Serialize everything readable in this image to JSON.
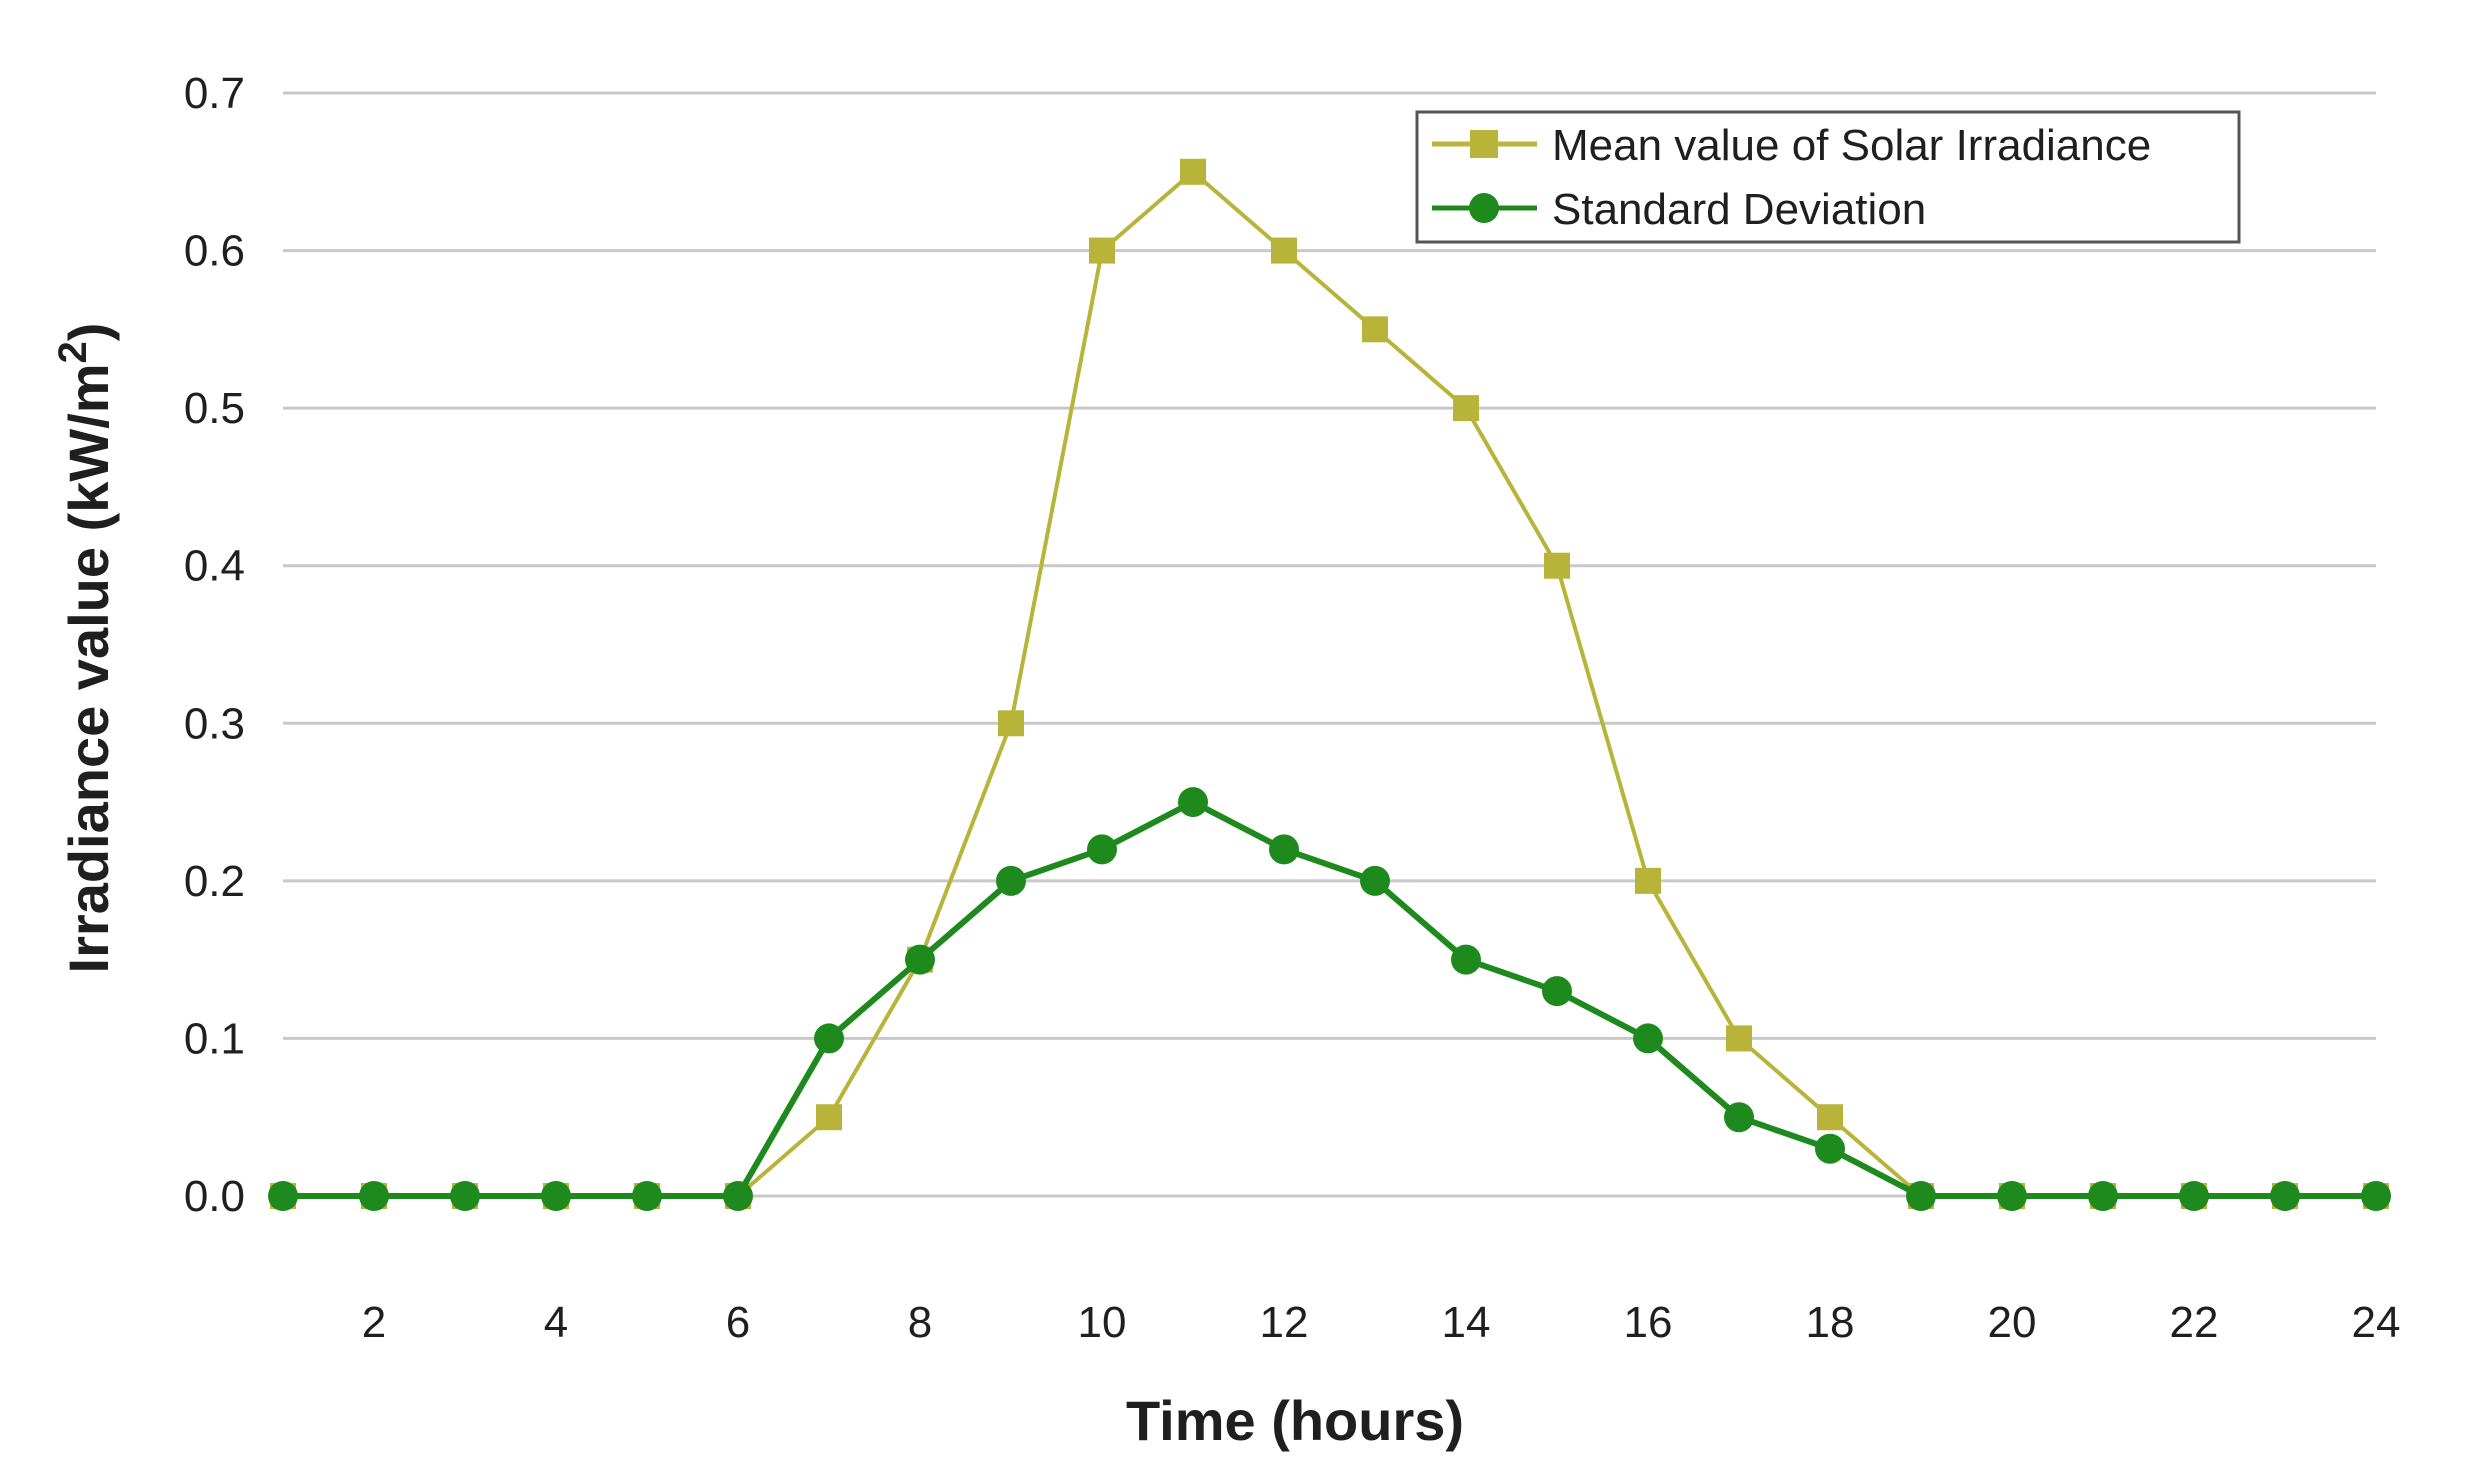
{
  "chart_data": {
    "type": "line",
    "title": "",
    "xlabel": "Time (hours)",
    "ylabel_main": "Irradiance value (kW/m",
    "ylabel_sup": "2",
    "ylabel_close": ")",
    "xlim": [
      1,
      24
    ],
    "ylim": [
      0,
      0.7
    ],
    "grid": true,
    "legend_position": "top-right",
    "x_ticks": [
      2,
      4,
      6,
      8,
      10,
      12,
      14,
      16,
      18,
      20,
      22,
      24
    ],
    "x_tick_labels": [
      "2",
      "4",
      "6",
      "8",
      "10",
      "12",
      "14",
      "16",
      "18",
      "20",
      "22",
      "24"
    ],
    "y_ticks": [
      0,
      0.1,
      0.2,
      0.3,
      0.4,
      0.5,
      0.6,
      0.7
    ],
    "y_tick_labels": [
      "0.0",
      "0.1",
      "0.2",
      "0.3",
      "0.4",
      "0.5",
      "0.6",
      "0.7"
    ],
    "x": [
      1,
      2,
      3,
      4,
      5,
      6,
      7,
      8,
      9,
      10,
      11,
      12,
      13,
      14,
      15,
      16,
      17,
      18,
      19,
      20,
      21,
      22,
      23,
      24
    ],
    "series": [
      {
        "name": "Mean value of Solar Irradiance",
        "marker": "square",
        "color": "#b8b43a",
        "values": [
          0,
          0,
          0,
          0,
          0,
          0,
          0.05,
          0.15,
          0.3,
          0.6,
          0.65,
          0.6,
          0.55,
          0.5,
          0.4,
          0.2,
          0.1,
          0.05,
          0,
          0,
          0,
          0,
          0,
          0
        ]
      },
      {
        "name": "Standard Deviation",
        "marker": "circle",
        "color": "#1e8a1e",
        "values": [
          0,
          0,
          0,
          0,
          0,
          0,
          0.1,
          0.15,
          0.2,
          0.22,
          0.25,
          0.22,
          0.2,
          0.15,
          0.13,
          0.1,
          0.05,
          0.03,
          0,
          0,
          0,
          0,
          0,
          0
        ]
      }
    ]
  }
}
